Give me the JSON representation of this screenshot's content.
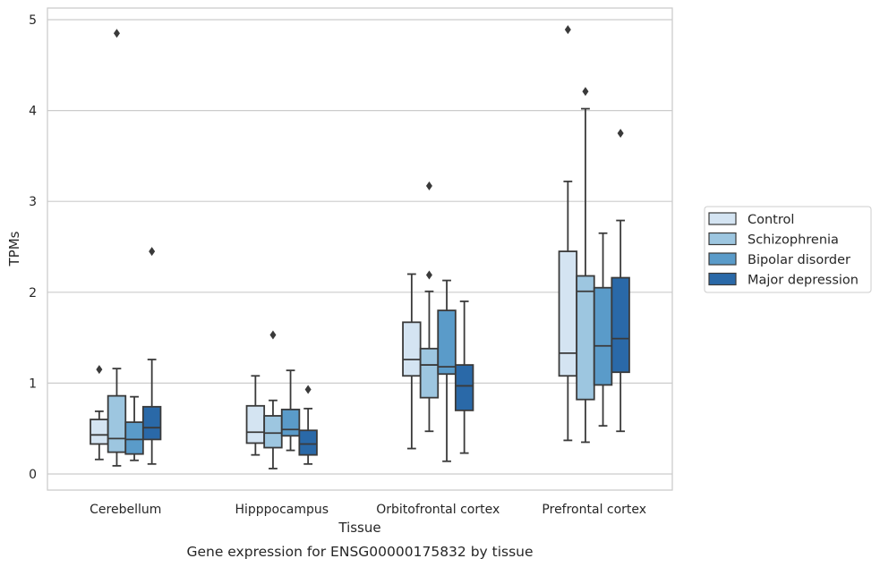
{
  "chart_data": {
    "type": "box",
    "caption": "Gene expression for ENSG00000175832 by tissue",
    "xlabel": "Tissue",
    "ylabel": "TPMs",
    "ylim": [
      -0.17,
      5.13
    ],
    "yticks": [
      0,
      1,
      2,
      3,
      4,
      5
    ],
    "grid": "horizontal",
    "legend_position": "right",
    "categories": [
      "Cerebellum",
      "Hipppocampus",
      "Orbitofrontal cortex",
      "Prefrontal cortex"
    ],
    "series": [
      {
        "name": "Control",
        "color": "#d4e4f2",
        "boxes": [
          {
            "whislo": 0.16,
            "q1": 0.33,
            "med": 0.43,
            "q3": 0.6,
            "whishi": 0.69,
            "fliers": [
              1.15
            ]
          },
          {
            "whislo": 0.21,
            "q1": 0.34,
            "med": 0.46,
            "q3": 0.75,
            "whishi": 1.08,
            "fliers": []
          },
          {
            "whislo": 0.28,
            "q1": 1.08,
            "med": 1.26,
            "q3": 1.67,
            "whishi": 2.2,
            "fliers": []
          },
          {
            "whislo": 0.37,
            "q1": 1.08,
            "med": 1.33,
            "q3": 2.45,
            "whishi": 3.22,
            "fliers": [
              4.89
            ]
          }
        ]
      },
      {
        "name": "Schizophrenia",
        "color": "#9dc6e0",
        "boxes": [
          {
            "whislo": 0.09,
            "q1": 0.24,
            "med": 0.39,
            "q3": 0.86,
            "whishi": 1.16,
            "fliers": [
              4.85
            ]
          },
          {
            "whislo": 0.06,
            "q1": 0.29,
            "med": 0.45,
            "q3": 0.64,
            "whishi": 0.81,
            "fliers": [
              1.53
            ]
          },
          {
            "whislo": 0.47,
            "q1": 0.84,
            "med": 1.2,
            "q3": 1.38,
            "whishi": 2.01,
            "fliers": [
              2.19,
              3.17
            ]
          },
          {
            "whislo": 0.35,
            "q1": 0.82,
            "med": 2.01,
            "q3": 2.18,
            "whishi": 4.02,
            "fliers": [
              4.21
            ]
          }
        ]
      },
      {
        "name": "Bipolar disorder",
        "color": "#5a9bc9",
        "boxes": [
          {
            "whislo": 0.15,
            "q1": 0.22,
            "med": 0.38,
            "q3": 0.57,
            "whishi": 0.85,
            "fliers": []
          },
          {
            "whislo": 0.26,
            "q1": 0.42,
            "med": 0.49,
            "q3": 0.71,
            "whishi": 1.14,
            "fliers": []
          },
          {
            "whislo": 0.14,
            "q1": 1.1,
            "med": 1.18,
            "q3": 1.8,
            "whishi": 2.13,
            "fliers": []
          },
          {
            "whislo": 0.53,
            "q1": 0.98,
            "med": 1.41,
            "q3": 2.05,
            "whishi": 2.65,
            "fliers": []
          }
        ]
      },
      {
        "name": "Major depression",
        "color": "#2a69a8",
        "boxes": [
          {
            "whislo": 0.11,
            "q1": 0.38,
            "med": 0.51,
            "q3": 0.74,
            "whishi": 1.26,
            "fliers": [
              2.45
            ]
          },
          {
            "whislo": 0.11,
            "q1": 0.21,
            "med": 0.33,
            "q3": 0.48,
            "whishi": 0.72,
            "fliers": [
              0.93
            ]
          },
          {
            "whislo": 0.23,
            "q1": 0.7,
            "med": 0.97,
            "q3": 1.2,
            "whishi": 1.9,
            "fliers": []
          },
          {
            "whislo": 0.47,
            "q1": 1.12,
            "med": 1.49,
            "q3": 2.16,
            "whishi": 2.79,
            "fliers": [
              3.75
            ]
          }
        ]
      }
    ]
  }
}
